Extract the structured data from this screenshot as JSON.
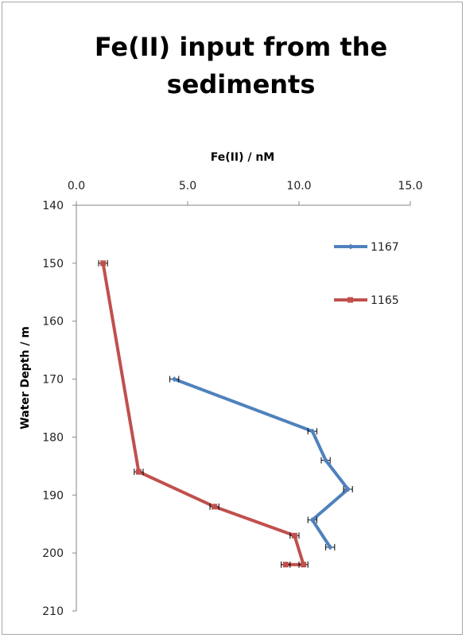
{
  "chart_data": {
    "type": "line",
    "title_line1": "Fe(II) input from the",
    "title_line2": "sediments",
    "xlabel": "Fe(II) / nM",
    "ylabel": "Water Depth / m",
    "xlim": [
      0,
      15
    ],
    "ylim": [
      140,
      210
    ],
    "y_reversed": true,
    "x_axis_position": "top",
    "x_ticks": [
      "0.0",
      "5.0",
      "10.0",
      "15.0"
    ],
    "y_ticks": [
      "140",
      "150",
      "160",
      "170",
      "180",
      "190",
      "200",
      "210"
    ],
    "grid": false,
    "legend_position": "right",
    "series": [
      {
        "name": "1167",
        "color": "#4f81bd",
        "marker": "diamond",
        "points": [
          {
            "x": 4.4,
            "y": 170,
            "err": 0.2
          },
          {
            "x": 10.6,
            "y": 179,
            "err": 0.2
          },
          {
            "x": 11.2,
            "y": 184,
            "err": 0.2
          },
          {
            "x": 12.2,
            "y": 189,
            "err": 0.2
          },
          {
            "x": 10.6,
            "y": 194.3,
            "err": 0.2
          },
          {
            "x": 11.4,
            "y": 199,
            "err": 0.2
          }
        ]
      },
      {
        "name": "1165",
        "color": "#c0504d",
        "marker": "square",
        "points": [
          {
            "x": 1.2,
            "y": 150,
            "err": 0.2
          },
          {
            "x": 2.8,
            "y": 186,
            "err": 0.2
          },
          {
            "x": 6.2,
            "y": 192,
            "err": 0.2
          },
          {
            "x": 9.8,
            "y": 197,
            "err": 0.2
          },
          {
            "x": 10.2,
            "y": 202,
            "err": 0.2
          },
          {
            "x": 9.4,
            "y": 202,
            "err": 0.2
          }
        ]
      }
    ]
  }
}
